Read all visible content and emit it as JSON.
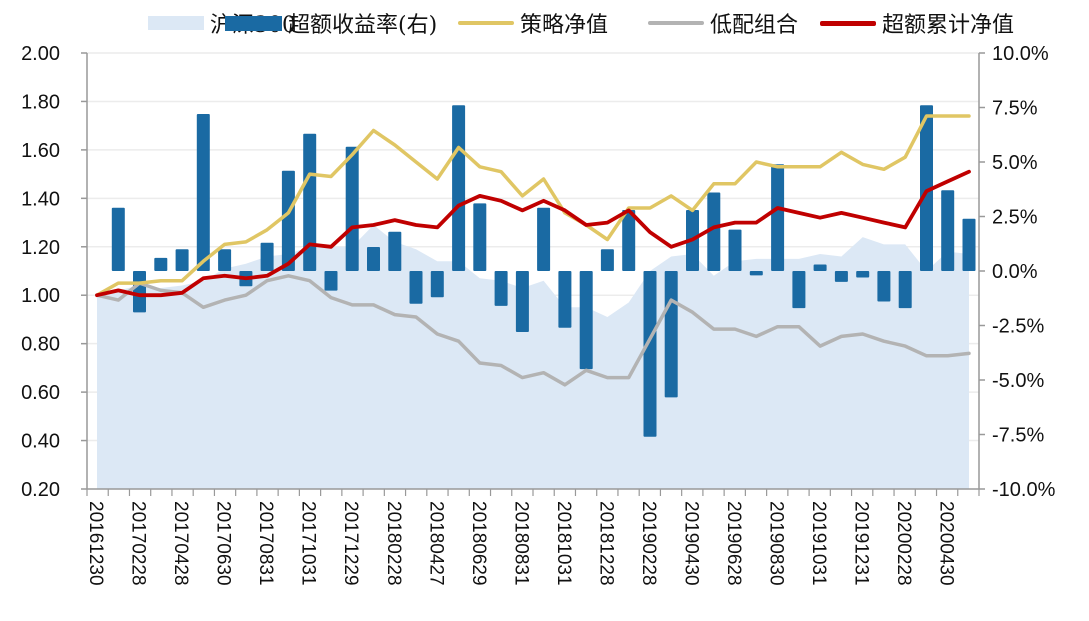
{
  "chart_data": {
    "type": "combo",
    "title": "",
    "legend_position": "top",
    "colors": {
      "hs300": "#dce8f5",
      "excess_return": "#1a6aa3",
      "strategy_nav": "#e0c664",
      "low_alloc": "#b3b3b3",
      "excess_cum_nav": "#c00000",
      "gridline": "#ececec",
      "axis": "#999999"
    },
    "legend": [
      {
        "key": "hs300",
        "label": "沪深300",
        "kind": "area"
      },
      {
        "key": "excess_return",
        "label": "超额收益率(右)",
        "kind": "bar"
      },
      {
        "key": "strategy_nav",
        "label": "策略净值",
        "kind": "line"
      },
      {
        "key": "low_alloc",
        "label": "低配组合",
        "kind": "line"
      },
      {
        "key": "excess_cum_nav",
        "label": "超额累计净值",
        "kind": "line"
      }
    ],
    "y_left": {
      "min": 0.2,
      "max": 2.0,
      "ticks": [
        "2.00",
        "1.80",
        "1.60",
        "1.40",
        "1.20",
        "1.00",
        "0.80",
        "0.60",
        "0.40",
        "0.20"
      ],
      "tick_values": [
        2.0,
        1.8,
        1.6,
        1.4,
        1.2,
        1.0,
        0.8,
        0.6,
        0.4,
        0.2
      ]
    },
    "y_right": {
      "min": -10,
      "max": 10,
      "unit": "%",
      "ticks": [
        "10.0%",
        "7.5%",
        "5.0%",
        "2.5%",
        "0.0%",
        "-2.5%",
        "-5.0%",
        "-7.5%",
        "-10.0%"
      ],
      "tick_values": [
        10,
        7.5,
        5,
        2.5,
        0,
        -2.5,
        -5,
        -7.5,
        -10
      ]
    },
    "grid": true,
    "x": [
      "20161230",
      "20170126",
      "20170228",
      "20170331",
      "20170428",
      "20170531",
      "20170630",
      "20170731",
      "20170831",
      "20170929",
      "20171031",
      "20171130",
      "20171229",
      "20180131",
      "20180228",
      "20180330",
      "20180427",
      "20180531",
      "20180629",
      "20180731",
      "20180831",
      "20180928",
      "20181031",
      "20181130",
      "20181228",
      "20190131",
      "20190228",
      "20190329",
      "20190430",
      "20190531",
      "20190628",
      "20190731",
      "20190830",
      "20190930",
      "20191031",
      "20191129",
      "20191231",
      "20200123",
      "20200228",
      "20200331",
      "20200430",
      "20200529"
    ],
    "x_tick_labels": [
      "20161230",
      "20170228",
      "20170428",
      "20170630",
      "20170831",
      "20171031",
      "20171229",
      "20180228",
      "20180427",
      "20180629",
      "20180831",
      "20181031",
      "20181228",
      "20190228",
      "20190430",
      "20190628",
      "20190830",
      "20191031",
      "20191231",
      "20200228",
      "20200430"
    ],
    "series": [
      {
        "key": "hs300",
        "name": "沪深300",
        "axis": "left",
        "type": "area",
        "values": [
          1.0,
          1.02,
          1.04,
          1.03,
          1.04,
          1.06,
          1.11,
          1.13,
          1.16,
          1.17,
          1.2,
          1.2,
          1.2,
          1.29,
          1.22,
          1.19,
          1.14,
          1.14,
          1.07,
          1.06,
          1.03,
          1.06,
          0.95,
          0.95,
          0.91,
          0.97,
          1.1,
          1.16,
          1.17,
          1.08,
          1.14,
          1.15,
          1.15,
          1.15,
          1.17,
          1.16,
          1.24,
          1.21,
          1.21,
          1.1,
          1.18,
          1.17
        ]
      },
      {
        "key": "excess_return",
        "name": "超额收益率(右)",
        "axis": "right",
        "type": "bar",
        "values": [
          0,
          2.9,
          -1.9,
          0.6,
          1.0,
          7.2,
          1.0,
          -0.7,
          1.3,
          4.6,
          6.3,
          -0.9,
          5.7,
          1.1,
          1.8,
          -1.5,
          -1.2,
          7.6,
          3.1,
          -1.6,
          -2.8,
          2.9,
          -2.6,
          -4.5,
          1.0,
          2.8,
          -7.6,
          -5.8,
          2.8,
          3.6,
          1.9,
          -0.2,
          4.9,
          -1.7,
          0.3,
          -0.5,
          -0.3,
          -1.4,
          -1.7,
          7.6,
          3.7,
          2.4
        ]
      },
      {
        "key": "strategy_nav",
        "name": "策略净值",
        "axis": "left",
        "type": "line",
        "values": [
          1.0,
          1.05,
          1.05,
          1.06,
          1.06,
          1.14,
          1.21,
          1.22,
          1.27,
          1.34,
          1.5,
          1.49,
          1.58,
          1.68,
          1.62,
          1.55,
          1.48,
          1.61,
          1.53,
          1.51,
          1.41,
          1.48,
          1.34,
          1.29,
          1.23,
          1.36,
          1.36,
          1.41,
          1.35,
          1.46,
          1.46,
          1.55,
          1.53,
          1.53,
          1.53,
          1.59,
          1.54,
          1.52,
          1.57,
          1.74,
          1.74,
          1.74
        ]
      },
      {
        "key": "low_alloc",
        "name": "低配组合",
        "axis": "left",
        "type": "line",
        "values": [
          1.0,
          0.98,
          1.05,
          1.02,
          1.01,
          0.95,
          0.98,
          1.0,
          1.06,
          1.08,
          1.06,
          0.99,
          0.96,
          0.96,
          0.92,
          0.91,
          0.84,
          0.81,
          0.72,
          0.71,
          0.66,
          0.68,
          0.63,
          0.69,
          0.66,
          0.66,
          0.82,
          0.98,
          0.93,
          0.86,
          0.86,
          0.83,
          0.87,
          0.87,
          0.79,
          0.83,
          0.84,
          0.81,
          0.79,
          0.75,
          0.75,
          0.76
        ]
      },
      {
        "key": "excess_cum_nav",
        "name": "超额累计净值",
        "axis": "left",
        "type": "line",
        "values": [
          1.0,
          1.02,
          1.0,
          1.0,
          1.01,
          1.07,
          1.08,
          1.07,
          1.08,
          1.13,
          1.21,
          1.2,
          1.28,
          1.29,
          1.31,
          1.29,
          1.28,
          1.37,
          1.41,
          1.39,
          1.35,
          1.39,
          1.35,
          1.29,
          1.3,
          1.35,
          1.26,
          1.2,
          1.23,
          1.28,
          1.3,
          1.3,
          1.36,
          1.34,
          1.32,
          1.34,
          1.32,
          1.3,
          1.28,
          1.43,
          1.47,
          1.51
        ]
      }
    ]
  }
}
